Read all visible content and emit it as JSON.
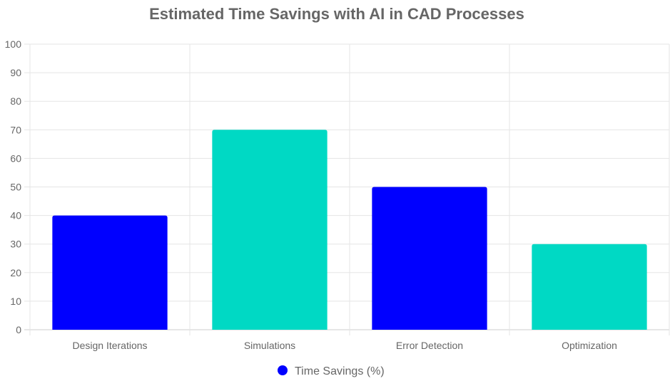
{
  "chart_data": {
    "type": "bar",
    "title": "Estimated Time Savings with AI in CAD Processes",
    "categories": [
      "Design Iterations",
      "Simulations",
      "Error Detection",
      "Optimization"
    ],
    "series": [
      {
        "name": "Time Savings (%)",
        "values": [
          40,
          70,
          50,
          30
        ]
      }
    ],
    "bar_colors": [
      "#0000FF",
      "#00D9C4",
      "#0000FF",
      "#00D9C4"
    ],
    "legend_color": "#0000FF",
    "ylim": [
      0,
      100
    ],
    "yticks": [
      0,
      10,
      20,
      30,
      40,
      50,
      60,
      70,
      80,
      90,
      100
    ],
    "xlabel": "",
    "ylabel": "",
    "grid": true,
    "legend_position": "bottom"
  }
}
